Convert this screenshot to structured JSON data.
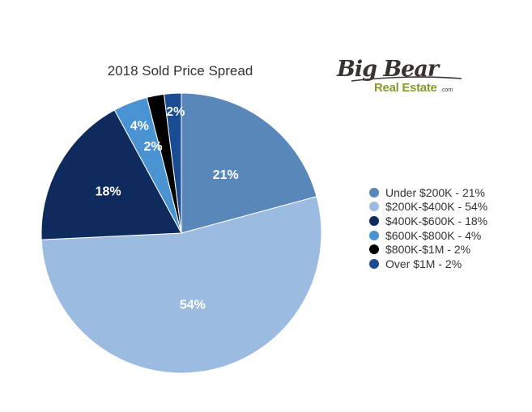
{
  "chart_data": {
    "type": "pie",
    "title": "2018 Sold Price Spread",
    "start_angle_deg": 0,
    "direction": "clockwise",
    "slices": [
      {
        "label": "Under $200K - 21%",
        "value": 21,
        "data_label": "21%",
        "color": "#5a87ba",
        "label_color": "#ffffff"
      },
      {
        "label": "$200K-$400K - 54%",
        "value": 54,
        "data_label": "54%",
        "color": "#9bbce0",
        "label_color": "#ffffff"
      },
      {
        "label": "$400K-$600K - 18%",
        "value": 18,
        "data_label": "18%",
        "color": "#0f2a5c",
        "label_color": "#ffffff"
      },
      {
        "label": "$600K-$800K - 4%",
        "value": 4,
        "data_label": "4%",
        "color": "#4a93d2",
        "label_color": "#ffffff"
      },
      {
        "label": "$800K-$1M - 2%",
        "value": 2,
        "data_label": "2%",
        "color": "#000000",
        "label_color": "#ffffff"
      },
      {
        "label": "Over $1M - 2%",
        "value": 2,
        "data_label": "2%",
        "color": "#1a4c94",
        "label_color": "#ffffff"
      }
    ],
    "legend_position": "right"
  },
  "logo": {
    "line1": "Big Bear",
    "line2": "Real Estate",
    "suffix": ".com",
    "colors": {
      "primary": "#3a3430",
      "accent": "#8a9a2a"
    }
  }
}
